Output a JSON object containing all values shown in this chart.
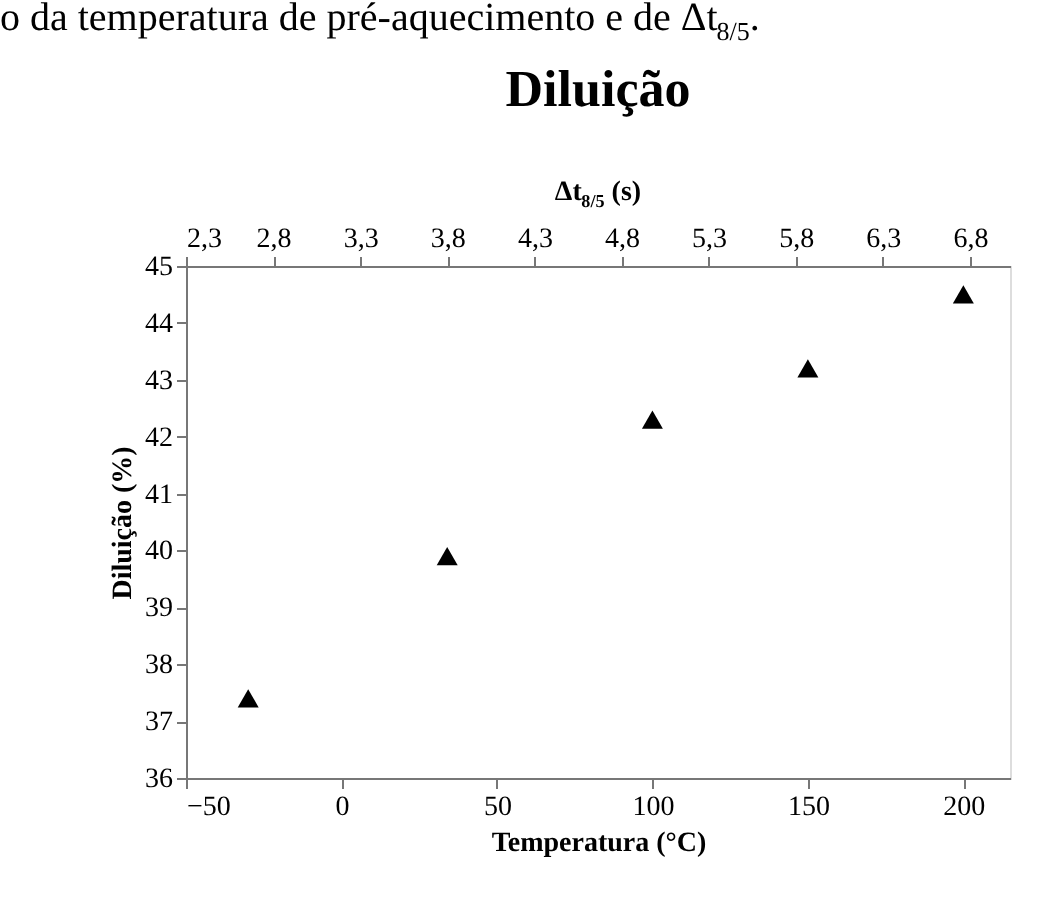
{
  "chart_data": {
    "type": "scatter",
    "title": "Diluição",
    "xlabel": "Temperatura (°C)",
    "ylabel": "Diluição (%)",
    "x2label": "Δt$_{8/5}$ (s)",
    "annotations": [
      "o da temperatura de pré-aquecimento e de Δt$_{8/5}$."
    ],
    "x": [
      -30,
      34,
      100,
      150,
      200
    ],
    "series": [
      {
        "color": "#000000",
        "values": [
          37.4,
          39.9,
          42.3,
          43.2,
          44.5
        ]
      }
    ],
    "marker": "triangle",
    "xlim": [
      -50,
      215
    ],
    "xticks": [
      -50,
      0,
      50,
      100,
      150,
      200
    ],
    "ylim": [
      36,
      45
    ],
    "yticks": [
      36,
      37,
      38,
      39,
      40,
      41,
      42,
      43,
      44,
      45
    ],
    "x2lim": [
      2.3,
      7.03
    ],
    "x2ticks": [
      {
        "value": 2.3,
        "label": "2,3"
      },
      {
        "value": 2.8,
        "label": "2,8"
      },
      {
        "value": 3.3,
        "label": "3,3"
      },
      {
        "value": 3.8,
        "label": "3,8"
      },
      {
        "value": 4.3,
        "label": "4,3"
      },
      {
        "value": 4.8,
        "label": "4,8"
      },
      {
        "value": 5.3,
        "label": "5,3"
      },
      {
        "value": 5.8,
        "label": "5,8"
      },
      {
        "value": 6.3,
        "label": "6,3"
      },
      {
        "value": 6.8,
        "label": "6,8"
      }
    ],
    "grid": false
  }
}
